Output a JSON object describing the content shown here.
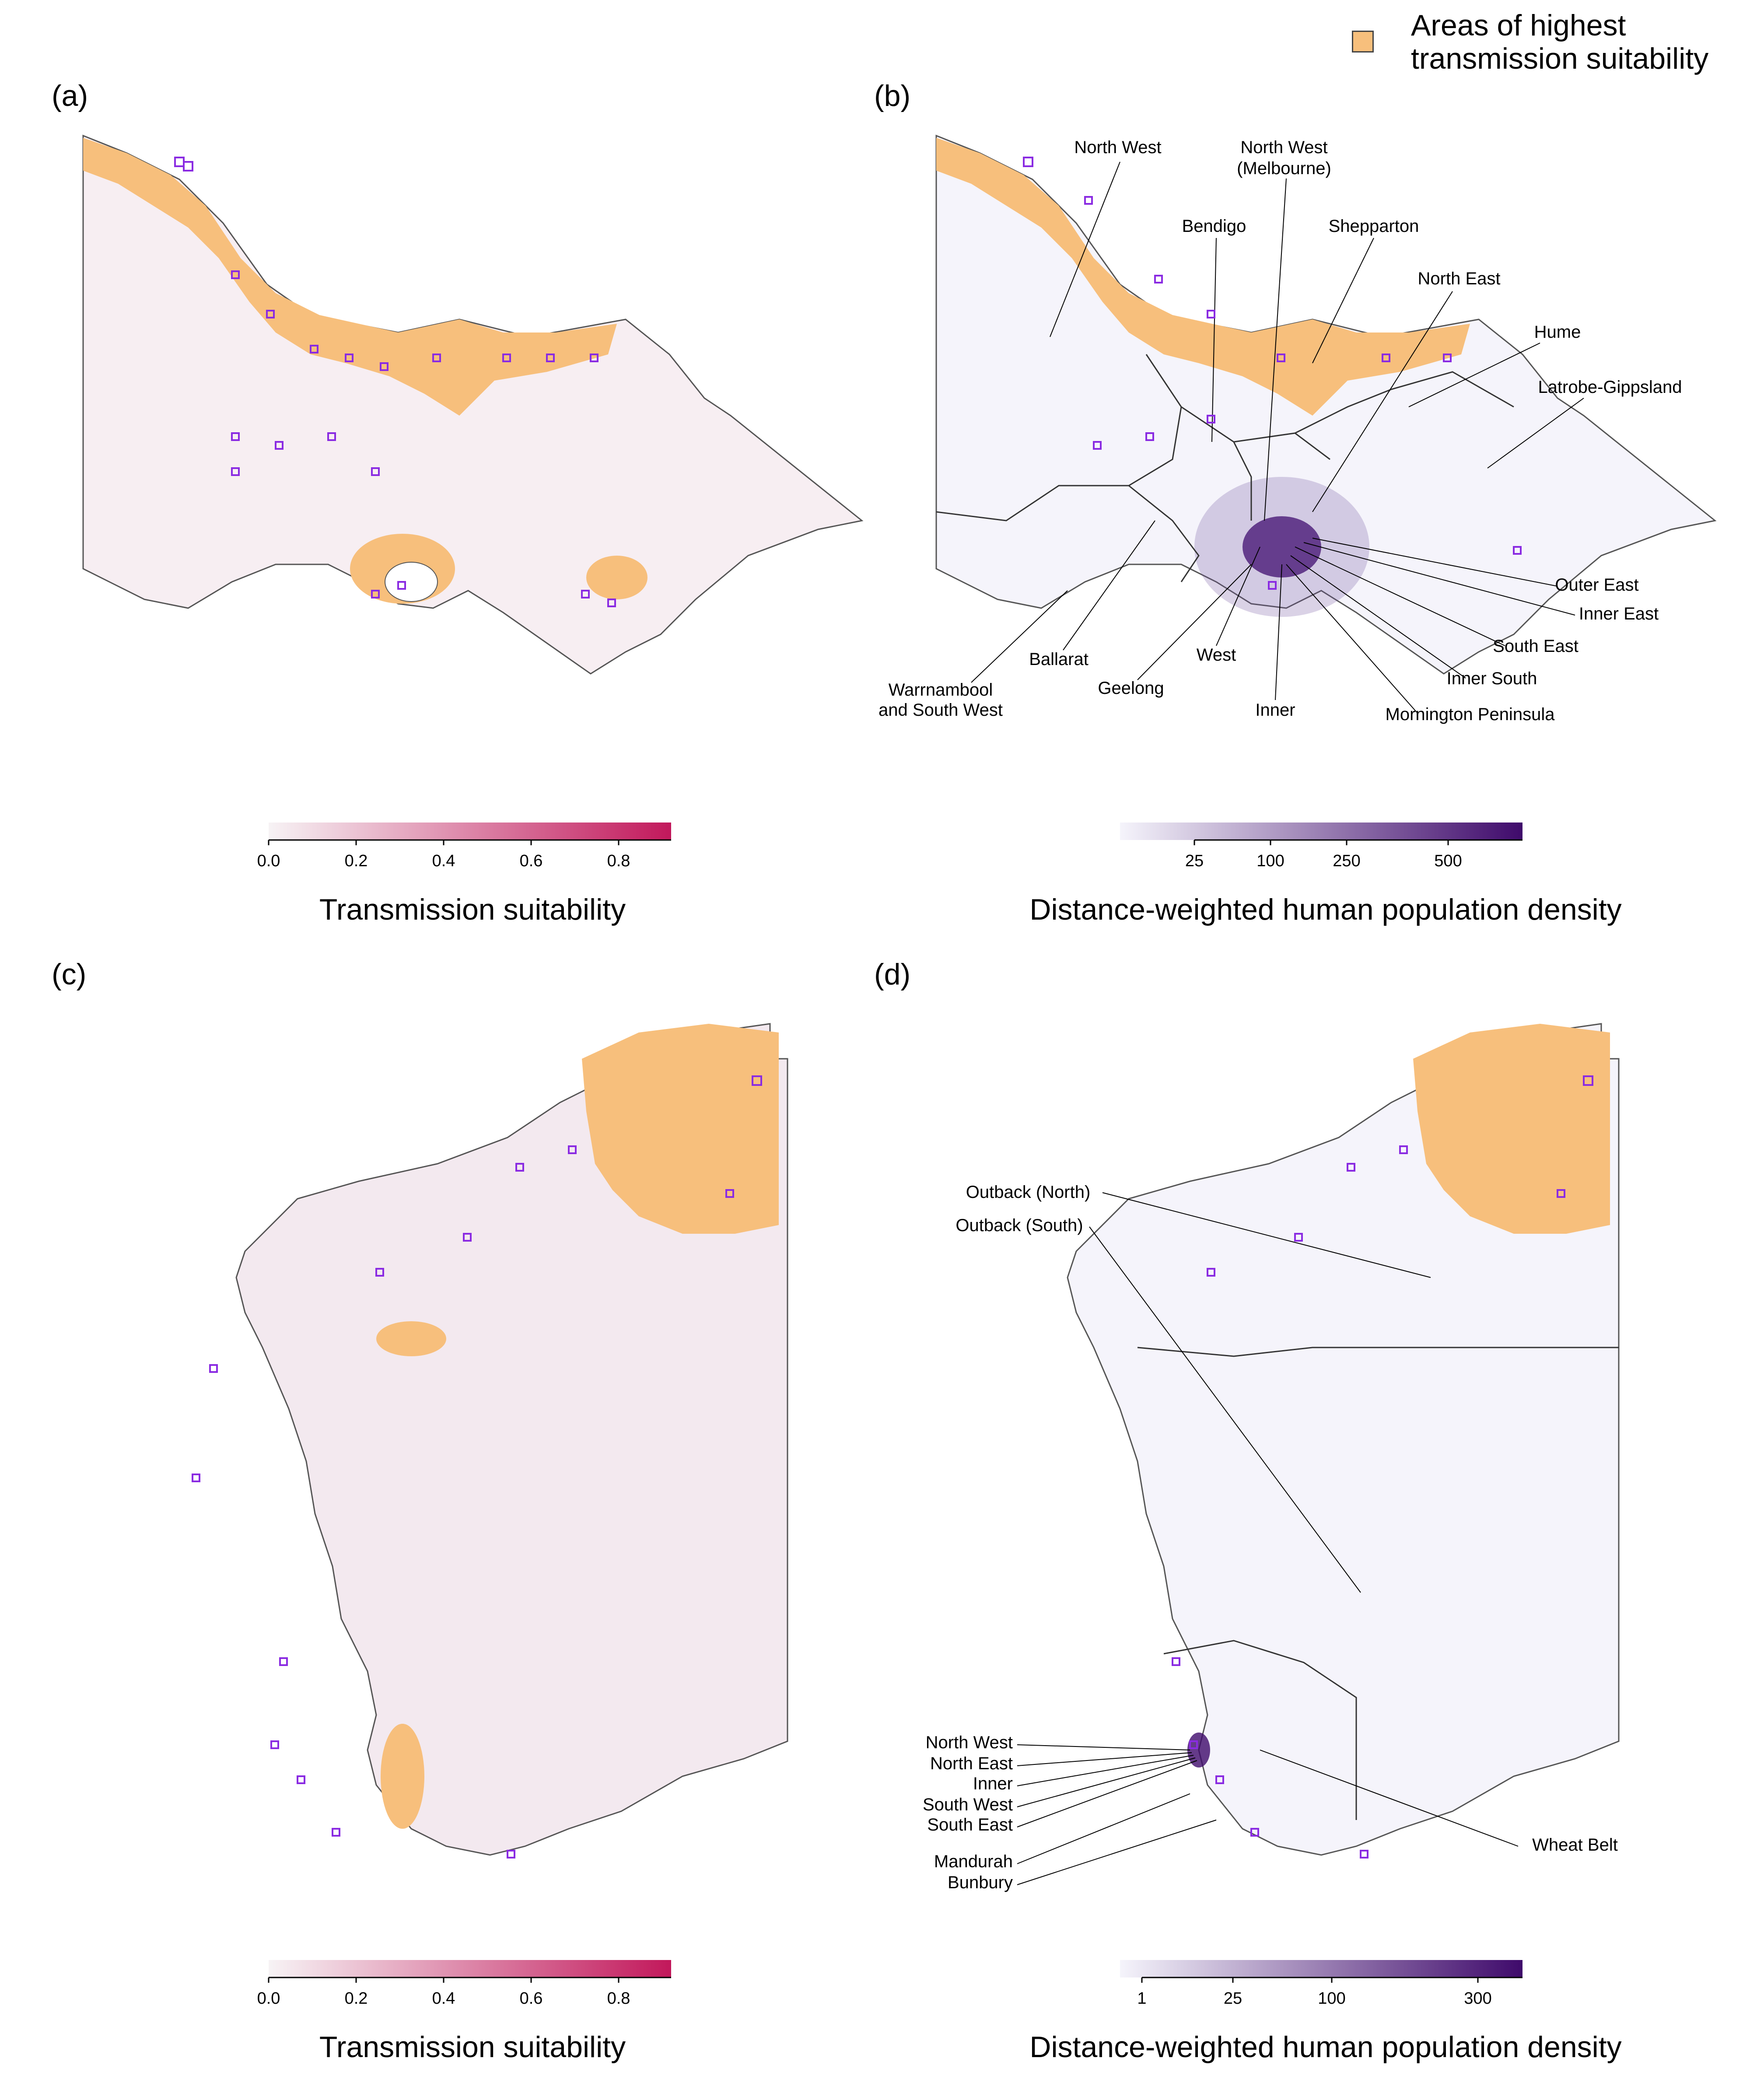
{
  "legend": {
    "label_line1": "Areas of highest",
    "label_line2": "transmission suitability",
    "color": "#f7bf7c"
  },
  "panels": {
    "a": {
      "label": "(a)"
    },
    "b": {
      "label": "(b)"
    },
    "c": {
      "label": "(c)"
    },
    "d": {
      "label": "(d)"
    }
  },
  "victoria_regions": [
    "North West",
    "North West",
    "(Melbourne)",
    "Bendigo",
    "Shepparton",
    "North East",
    "Hume",
    "Latrobe-Gippsland",
    "Outer East",
    "Inner East",
    "South East",
    "Inner South",
    "Mornington Peninsula",
    "Inner",
    "West",
    "Geelong",
    "Ballarat",
    "Warrnambool",
    "and South West"
  ],
  "wa_regions": [
    "Outback (North)",
    "Outback (South)",
    "North West",
    "North East",
    "Inner",
    "South West",
    "South East",
    "Mandurah",
    "Bunbury",
    "Wheat Belt"
  ],
  "scale_suitability": {
    "title": "Transmission suitability",
    "ticks": [
      "0.0",
      "0.2",
      "0.4",
      "0.6",
      "0.8"
    ],
    "color_low": "#f7f3f5",
    "color_high": "#c2185b"
  },
  "scale_density_vic": {
    "title": "Distance-weighted human population density",
    "ticks": [
      "25",
      "100",
      "250",
      "500"
    ],
    "color_low": "#f5f4fb",
    "color_high": "#3f0a6b"
  },
  "scale_density_wa": {
    "title": "Distance-weighted human population density",
    "ticks": [
      "1",
      "25",
      "100",
      "300"
    ],
    "color_low": "#f5f4fb",
    "color_high": "#3f0a6b"
  },
  "colors": {
    "marker": "#8a2be2",
    "suitability_area": "#f7bf7c",
    "boundary": "#333333"
  }
}
